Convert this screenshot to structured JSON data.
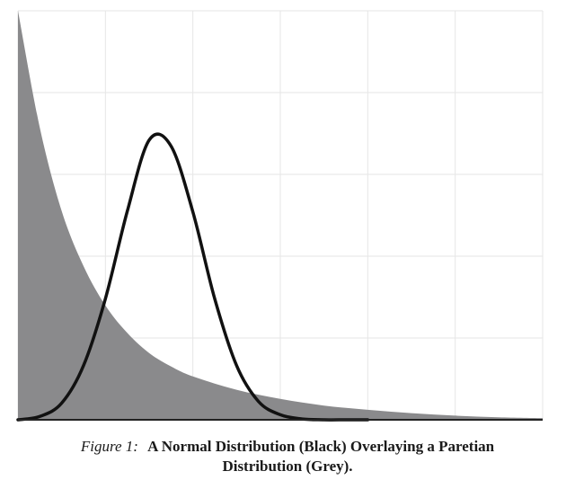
{
  "chart_data": {
    "type": "area",
    "title": "",
    "xlabel": "",
    "ylabel": "",
    "xlim": [
      0,
      6
    ],
    "ylim": [
      0,
      4.9
    ],
    "grid": true,
    "legend": "none",
    "colors": {
      "pareto_fill": "#8a8a8c",
      "normal_line": "#111111",
      "grid": "#e6e6e6",
      "axis": "#222222",
      "background": "#ffffff"
    },
    "series": [
      {
        "style": "filled-area",
        "x": [
          0,
          0.25,
          0.5,
          0.75,
          1.0,
          1.25,
          1.5,
          1.75,
          2.0,
          2.5,
          3.0,
          3.5,
          4.0,
          4.5,
          5.0,
          5.5,
          6.0
        ],
        "y": [
          4.9,
          3.5,
          2.5,
          1.84,
          1.37,
          1.04,
          0.8,
          0.64,
          0.52,
          0.36,
          0.25,
          0.17,
          0.12,
          0.08,
          0.05,
          0.03,
          0.02
        ]
      },
      {
        "style": "line",
        "x": [
          0,
          0.25,
          0.5,
          0.75,
          1.0,
          1.25,
          1.5,
          1.75,
          2.0,
          2.25,
          2.5,
          2.75,
          3.0,
          3.25,
          3.5,
          3.75,
          4.0
        ],
        "y": [
          0.0,
          0.04,
          0.2,
          0.65,
          1.45,
          2.5,
          3.35,
          3.28,
          2.49,
          1.45,
          0.65,
          0.22,
          0.06,
          0.01,
          0.0,
          0.0,
          0.0
        ]
      }
    ]
  },
  "caption": {
    "label": "Figure 1:",
    "text_line1": "A Normal Distribution (Black) Overlaying a Paretian",
    "text_line2": "Distribution (Grey)."
  }
}
